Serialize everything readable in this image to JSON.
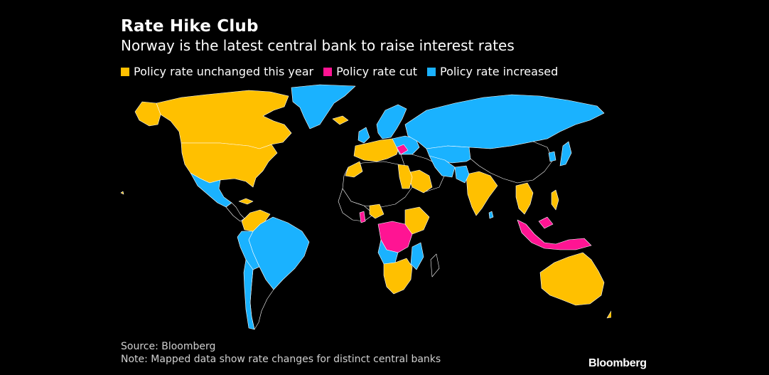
{
  "header": {
    "title": "Rate Hike Club",
    "subtitle": "Norway is the latest central bank to raise interest rates"
  },
  "legend": [
    {
      "label": "Policy rate unchanged this year",
      "color": "#ffc000"
    },
    {
      "label": "Policy rate cut",
      "color": "#ff1493"
    },
    {
      "label": "Policy rate increased",
      "color": "#1ab2ff"
    }
  ],
  "colors": {
    "unchanged": "#ffc000",
    "cut": "#ff1493",
    "increased": "#1ab2ff",
    "no_data": "#000000",
    "borders": "#ffffff",
    "background": "#000000"
  },
  "footer": {
    "source": "Source: Bloomberg",
    "note": "Note: Mapped data show rate changes for distinct central banks",
    "logo": "Bloomberg"
  }
}
